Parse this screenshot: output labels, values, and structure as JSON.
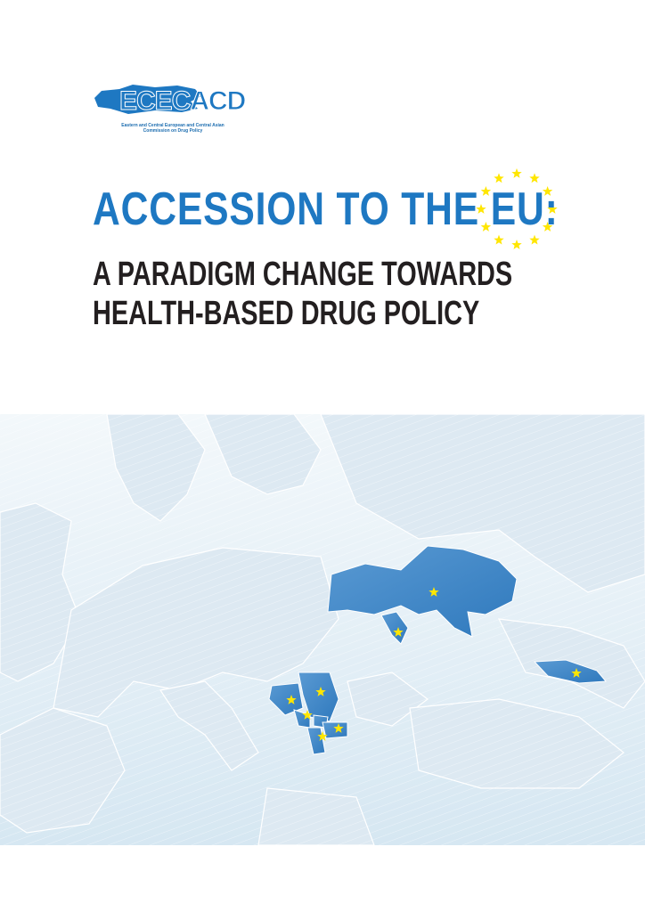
{
  "logo": {
    "name": "ECECACD",
    "subtitle": "Eastern and Central European and Central Asian Commission on Drug Policy"
  },
  "title": {
    "line1": "ACCESSION TO THE EU:",
    "line2": "A PARADIGM CHANGE TOWARDS",
    "line3": "HEALTH-BASED DRUG POLICY"
  },
  "colors": {
    "title_blue": "#1e78c2",
    "title_dark": "#231f20",
    "map_light": "#dbe9f3",
    "map_highlight": "#4a8fcb",
    "star": "#ffe600"
  },
  "map": {
    "highlighted_countries_with_stars": [
      "Ukraine",
      "Moldova",
      "Georgia",
      "Bosnia and Herzegovina",
      "Serbia",
      "Montenegro",
      "Kosovo",
      "Albania",
      "North Macedonia"
    ]
  }
}
